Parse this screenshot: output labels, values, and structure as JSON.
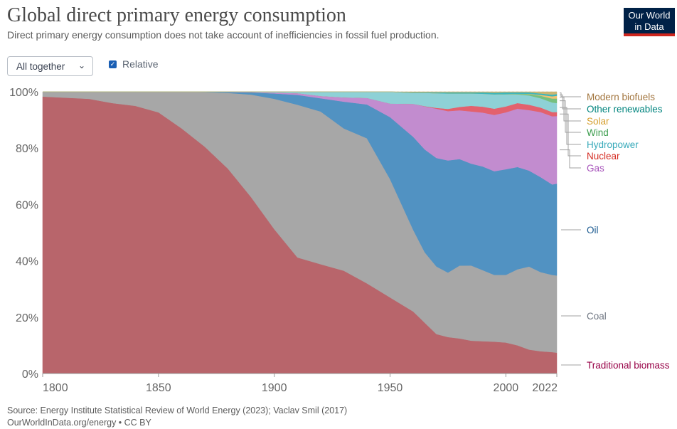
{
  "header": {
    "title": "Global direct primary energy consumption",
    "subtitle": "Direct primary energy consumption does not take account of inefficiencies in fossil fuel production."
  },
  "logo": {
    "line1": "Our World",
    "line2": "in Data"
  },
  "controls": {
    "dropdown_label": "All together",
    "relative_label": "Relative",
    "relative_checked": true
  },
  "footer": {
    "source": "Source: Energy Institute Statistical Review of World Energy (2023); Vaclav Smil (2017)",
    "link": "OurWorldInData.org/energy • CC BY"
  },
  "colors": {
    "Traditional biomass": "#b8656b",
    "Coal": "#a7a7a7",
    "Oil": "#5192c2",
    "Gas": "#c28ccf",
    "Nuclear": "#e3616d",
    "Hydropower": "#8ed1d6",
    "Wind": "#76c07f",
    "Solar": "#f0c274",
    "Other renewables": "#3bb6bc",
    "Modern biofuels": "#cbb572"
  },
  "legend_colors": {
    "Modern biofuels": "#a2753e",
    "Other renewables": "#00847e",
    "Solar": "#d59e2b",
    "Wind": "#3c9d4d",
    "Hydropower": "#38aaba",
    "Nuclear": "#d42b21",
    "Gas": "#a652ba",
    "Oil": "#18588f",
    "Coal": "#6e7581",
    "Traditional biomass": "#970046"
  },
  "chart_data": {
    "type": "area",
    "stacked": true,
    "relative": true,
    "title": "Global direct primary energy consumption",
    "xlabel": "",
    "ylabel": "",
    "xlim": [
      1800,
      2022
    ],
    "ylim": [
      0,
      100
    ],
    "x_ticks": [
      "1800",
      "1850",
      "1900",
      "1950",
      "2000",
      "2022"
    ],
    "x_tick_values": [
      1800,
      1850,
      1900,
      1950,
      2000,
      2022
    ],
    "y_ticks": [
      "0%",
      "20%",
      "40%",
      "60%",
      "80%",
      "100%"
    ],
    "y_tick_values": [
      0,
      20,
      40,
      60,
      80,
      100
    ],
    "x": [
      1800,
      1820,
      1830,
      1840,
      1850,
      1860,
      1870,
      1880,
      1890,
      1900,
      1910,
      1920,
      1930,
      1940,
      1950,
      1960,
      1965,
      1970,
      1975,
      1980,
      1985,
      1990,
      1995,
      2000,
      2005,
      2010,
      2015,
      2020,
      2022
    ],
    "series": [
      {
        "name": "Traditional biomass",
        "values": [
          98.3,
          97.5,
          96,
          95,
          92.7,
          87,
          80.5,
          72.7,
          62.6,
          51.4,
          41.2,
          38.8,
          36.5,
          32,
          27,
          22,
          18,
          14,
          13,
          12.5,
          11.7,
          11.5,
          11.3,
          11,
          10,
          8.5,
          7.9,
          7.6,
          7.4
        ]
      },
      {
        "name": "Coal",
        "values": [
          1.7,
          2.5,
          4,
          5,
          7.3,
          13,
          19.4,
          26.9,
          36.4,
          46.4,
          54.2,
          54.2,
          50.5,
          51.5,
          42,
          29,
          25,
          24,
          23,
          26,
          26.8,
          25.3,
          23.7,
          24,
          27,
          29.5,
          28.1,
          27.4,
          27.4
        ]
      },
      {
        "name": "Oil",
        "values": [
          0,
          0,
          0,
          0,
          0,
          0,
          0.1,
          0.3,
          0.8,
          1.9,
          3.5,
          4.7,
          9.5,
          12,
          22,
          33,
          36.5,
          38.5,
          40,
          38,
          36.3,
          36.9,
          36.8,
          37.5,
          36.3,
          34.1,
          33.7,
          32.1,
          32.6
        ]
      },
      {
        "name": "Gas",
        "values": [
          0,
          0,
          0,
          0,
          0,
          0,
          0,
          0.1,
          0.1,
          0.3,
          0.6,
          0.8,
          1.5,
          2.3,
          4.8,
          11.7,
          15.3,
          17.5,
          17.6,
          17.4,
          18.6,
          19.2,
          20,
          20.2,
          20.7,
          21.5,
          23.1,
          24.2,
          24
        ]
      },
      {
        "name": "Nuclear",
        "values": [
          0,
          0,
          0,
          0,
          0,
          0,
          0,
          0,
          0,
          0,
          0,
          0,
          0,
          0,
          0,
          0,
          0.1,
          0.3,
          0.8,
          1.2,
          2,
          2.1,
          2.2,
          2.1,
          2,
          1.9,
          1.6,
          1.5,
          1.4
        ]
      },
      {
        "name": "Hydropower",
        "values": [
          0,
          0,
          0,
          0,
          0,
          0,
          0,
          0,
          0.1,
          0.3,
          0.5,
          1.5,
          2,
          2.2,
          4.2,
          3.9,
          4.7,
          5.2,
          5.5,
          4.8,
          4.4,
          4.6,
          5.1,
          4.3,
          3.1,
          3.3,
          3.3,
          3.4,
          3.2
        ]
      },
      {
        "name": "Wind",
        "values": [
          0,
          0,
          0,
          0,
          0,
          0,
          0,
          0,
          0,
          0,
          0,
          0,
          0,
          0,
          0,
          0,
          0,
          0,
          0,
          0,
          0,
          0,
          0,
          0.1,
          0.2,
          0.5,
          0.9,
          1.4,
          1.6
        ]
      },
      {
        "name": "Solar",
        "values": [
          0,
          0,
          0,
          0,
          0,
          0,
          0,
          0,
          0,
          0,
          0,
          0,
          0,
          0,
          0,
          0,
          0,
          0,
          0,
          0,
          0,
          0,
          0,
          0,
          0,
          0.1,
          0.3,
          0.8,
          1
        ]
      },
      {
        "name": "Other renewables",
        "values": [
          0,
          0,
          0,
          0,
          0,
          0,
          0,
          0,
          0,
          0,
          0,
          0,
          0,
          0,
          0,
          0.2,
          0.2,
          0.3,
          0.4,
          0.4,
          0.4,
          0.5,
          0.6,
          0.6,
          0.5,
          0.5,
          0.5,
          0.6,
          0.6
        ]
      },
      {
        "name": "Modern biofuels",
        "values": [
          0,
          0,
          0,
          0,
          0,
          0,
          0,
          0,
          0,
          0,
          0,
          0,
          0,
          0,
          0,
          0.2,
          0.2,
          0.2,
          0.2,
          0.2,
          0.2,
          0.2,
          0.3,
          0.2,
          0.2,
          0.2,
          0.6,
          1,
          0.8
        ]
      }
    ],
    "legend": [
      "Modern biofuels",
      "Other renewables",
      "Solar",
      "Wind",
      "Hydropower",
      "Nuclear",
      "Gas",
      "Oil",
      "Coal",
      "Traditional biomass"
    ],
    "legend_placement": "right",
    "grid": true
  }
}
